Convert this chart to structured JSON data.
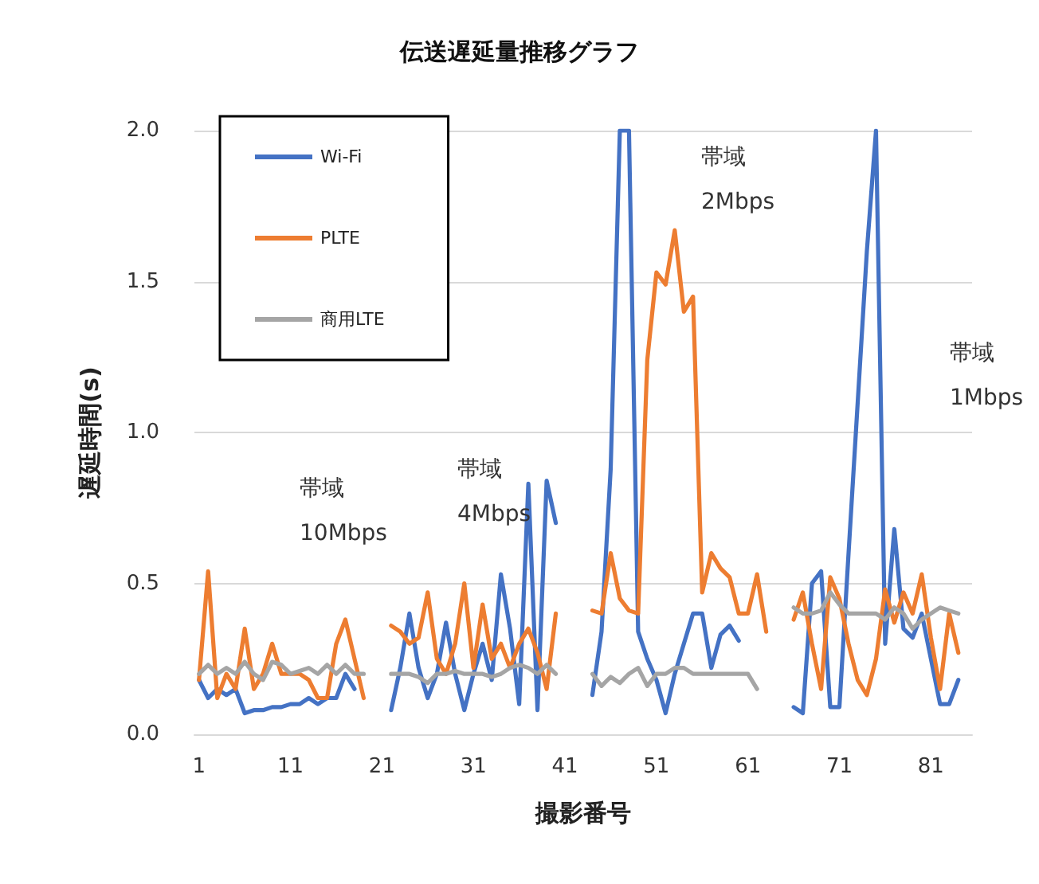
{
  "chart_data": {
    "type": "line",
    "title": "伝送遅延量推移グラフ",
    "xlabel": "撮影番号",
    "ylabel": "遅延時間(s)",
    "categories": [
      "1",
      null,
      null,
      null,
      null,
      null,
      null,
      null,
      null,
      null,
      "11",
      null,
      null,
      null,
      null,
      null,
      null,
      null,
      null,
      null,
      "21",
      null,
      null,
      null,
      null,
      null,
      null,
      null,
      null,
      null,
      "31",
      null,
      null,
      null,
      null,
      null,
      null,
      null,
      null,
      null,
      "41",
      null,
      null,
      null,
      null,
      null,
      null,
      null,
      null,
      null,
      "51",
      null,
      null,
      null,
      null,
      null,
      null,
      null,
      null,
      null,
      "61",
      null,
      null,
      null,
      null,
      null,
      null,
      null,
      null,
      null,
      "71",
      null,
      null,
      null,
      null,
      null,
      null,
      null,
      null,
      null,
      "81",
      null,
      null,
      null,
      null
    ],
    "series": [
      {
        "name": "Wi-Fi",
        "color": "#4472c4",
        "values": [
          0.18,
          0.12,
          0.15,
          0.13,
          0.15,
          0.07,
          0.08,
          0.08,
          0.09,
          0.09,
          0.1,
          0.1,
          0.12,
          0.1,
          0.12,
          0.12,
          0.2,
          0.15,
          null,
          null,
          null,
          0.08,
          0.22,
          0.4,
          0.22,
          0.12,
          0.2,
          0.37,
          0.2,
          0.08,
          0.2,
          0.3,
          0.18,
          0.53,
          0.35,
          0.1,
          0.83,
          0.08,
          0.84,
          0.7,
          null,
          null,
          null,
          0.13,
          0.34,
          0.88,
          2,
          2,
          0.34,
          0.25,
          0.18,
          0.07,
          0.2,
          0.3,
          0.4,
          0.4,
          0.22,
          0.33,
          0.36,
          0.31,
          null,
          null,
          null,
          null,
          null,
          0.09,
          0.07,
          0.5,
          0.54,
          0.09,
          0.09,
          0.6,
          1.1,
          1.6,
          2,
          0.3,
          0.68,
          0.35,
          0.32,
          0.4,
          0.25,
          0.1,
          0.1,
          0.18,
          null
        ]
      },
      {
        "name": "PLTE",
        "color": "#ed7d31",
        "values": [
          0.18,
          0.54,
          0.12,
          0.2,
          0.15,
          0.35,
          0.15,
          0.2,
          0.3,
          0.2,
          0.2,
          0.2,
          0.18,
          0.12,
          0.12,
          0.3,
          0.38,
          0.25,
          0.12,
          null,
          null,
          0.36,
          0.34,
          0.3,
          0.32,
          0.47,
          0.25,
          0.2,
          0.3,
          0.5,
          0.22,
          0.43,
          0.25,
          0.3,
          0.22,
          0.3,
          0.35,
          0.27,
          0.15,
          0.4,
          null,
          null,
          null,
          0.41,
          0.4,
          0.6,
          0.45,
          0.41,
          0.4,
          1.24,
          1.53,
          1.49,
          1.67,
          1.4,
          1.45,
          0.47,
          0.6,
          0.55,
          0.52,
          0.4,
          0.4,
          0.53,
          0.34,
          null,
          null,
          0.38,
          0.47,
          0.3,
          0.15,
          0.52,
          0.45,
          0.3,
          0.18,
          0.13,
          0.25,
          0.48,
          0.37,
          0.47,
          0.4,
          0.53,
          0.32,
          0.15,
          0.4,
          0.27,
          null
        ]
      },
      {
        "name": "商用LTE",
        "color": "#a5a5a5",
        "values": [
          0.2,
          0.23,
          0.2,
          0.22,
          0.2,
          0.24,
          0.2,
          0.18,
          0.24,
          0.23,
          0.2,
          0.21,
          0.22,
          0.2,
          0.23,
          0.2,
          0.23,
          0.2,
          0.2,
          null,
          null,
          0.2,
          0.2,
          0.2,
          0.19,
          0.17,
          0.2,
          0.2,
          0.21,
          0.2,
          0.2,
          0.2,
          0.19,
          0.2,
          0.22,
          0.23,
          0.22,
          0.2,
          0.23,
          0.2,
          null,
          null,
          null,
          0.2,
          0.16,
          0.19,
          0.17,
          0.2,
          0.22,
          0.16,
          0.2,
          0.2,
          0.22,
          0.22,
          0.2,
          0.2,
          0.2,
          0.2,
          0.2,
          0.2,
          0.2,
          0.15,
          null,
          null,
          null,
          0.42,
          0.4,
          0.4,
          0.41,
          0.47,
          0.43,
          0.4,
          0.4,
          0.4,
          0.4,
          0.38,
          0.42,
          0.4,
          0.35,
          0.38,
          0.4,
          0.42,
          0.41,
          0.4,
          null
        ]
      }
    ],
    "ylim": [
      0,
      2
    ],
    "yticks": [
      {
        "value": 0,
        "label": "0.0"
      },
      {
        "value": 0.5,
        "label": "0.5"
      },
      {
        "value": 1,
        "label": "1.0"
      },
      {
        "value": 1.5,
        "label": "1.5"
      },
      {
        "value": 2,
        "label": "2.0"
      }
    ],
    "grid": "y",
    "legend": "top left",
    "marker": "none",
    "line_style": "solid",
    "annotations": [
      "帯域\n10Mbps",
      "帯域\n4Mbps",
      "帯域\n2Mbps",
      "帯域\n1Mbps"
    ]
  }
}
